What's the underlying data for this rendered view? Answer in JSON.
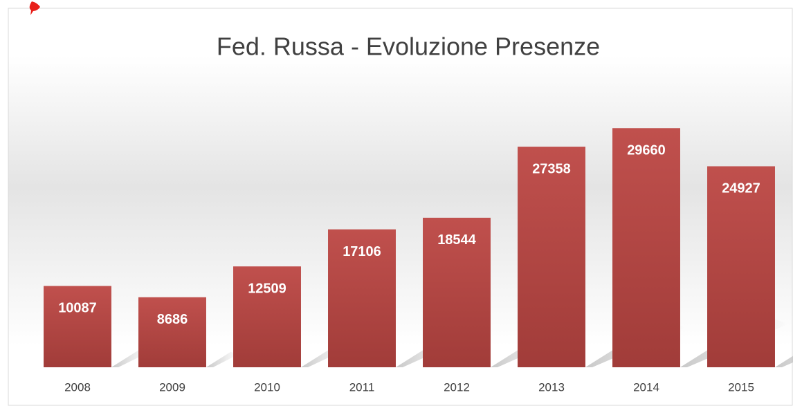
{
  "chart_data": {
    "type": "bar",
    "title": "Fed. Russa - Evoluzione Presenze",
    "categories": [
      "2008",
      "2009",
      "2010",
      "2011",
      "2012",
      "2013",
      "2014",
      "2015"
    ],
    "values": [
      10087,
      8686,
      12509,
      17106,
      18544,
      27358,
      29660,
      24927
    ],
    "color": "#c0504d",
    "ylim": [
      0,
      35000
    ],
    "grid": false
  }
}
